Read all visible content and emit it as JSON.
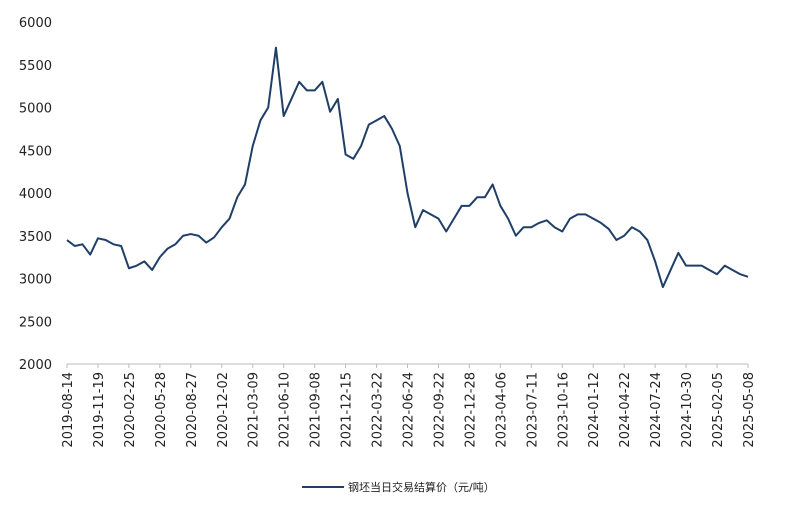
{
  "chart_data": {
    "type": "line",
    "categories": [
      "2019-08-14",
      null,
      null,
      null,
      "2019-11-19",
      null,
      null,
      null,
      "2020-02-25",
      null,
      null,
      null,
      "2020-05-28",
      null,
      null,
      null,
      "2020-08-27",
      null,
      null,
      null,
      "2020-12-02",
      null,
      null,
      null,
      "2021-03-09",
      null,
      null,
      null,
      "2021-06-10",
      null,
      null,
      null,
      "2021-09-08",
      null,
      null,
      null,
      "2021-12-15",
      null,
      null,
      null,
      "2022-03-22",
      null,
      null,
      null,
      "2022-06-24",
      null,
      null,
      null,
      "2022-09-22",
      null,
      null,
      null,
      "2022-12-28",
      null,
      null,
      null,
      "2023-04-06",
      null,
      null,
      null,
      "2023-07-11",
      null,
      null,
      null,
      "2023-10-16",
      null,
      null,
      null,
      "2024-01-12",
      null,
      null,
      null,
      "2024-04-22",
      null,
      null,
      null,
      "2024-07-24",
      null,
      null,
      null,
      "2024-10-30",
      null,
      null,
      null,
      "2025-02-05",
      null,
      null,
      null,
      "2025-05-08"
    ],
    "series": [
      {
        "name": "钢坯当日交易结算价（元/吨）",
        "color": "#1f3f66",
        "values": [
          3450,
          3380,
          3400,
          3280,
          3470,
          3450,
          3400,
          3380,
          3120,
          3150,
          3200,
          3100,
          3250,
          3350,
          3400,
          3500,
          3520,
          3500,
          3420,
          3480,
          3600,
          3700,
          3950,
          4100,
          4550,
          4850,
          5000,
          5700,
          4900,
          5100,
          5300,
          5200,
          5200,
          5300,
          4950,
          5100,
          4450,
          4400,
          4550,
          4800,
          4850,
          4900,
          4750,
          4550,
          4000,
          3600,
          3800,
          3750,
          3700,
          3550,
          3700,
          3850,
          3850,
          3950,
          3950,
          4100,
          3850,
          3700,
          3500,
          3600,
          3600,
          3650,
          3680,
          3600,
          3550,
          3700,
          3750,
          3750,
          3700,
          3650,
          3580,
          3450,
          3500,
          3600,
          3550,
          3450,
          3200,
          2900,
          3100,
          3300,
          3150,
          3150,
          3150,
          3100,
          3050,
          3150,
          3100,
          3050,
          3020
        ]
      }
    ],
    "ylim": [
      2000,
      6000
    ],
    "yticks": [
      2000,
      2500,
      3000,
      3500,
      4000,
      4500,
      5000,
      5500,
      6000
    ],
    "grid": false,
    "legend": "bottom"
  }
}
